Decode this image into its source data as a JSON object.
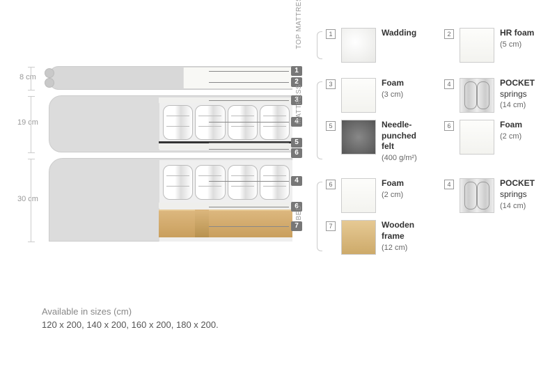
{
  "dimensions": {
    "top": "8 cm",
    "mid": "19 cm",
    "bot": "30 cm"
  },
  "pointers": [
    "1",
    "2",
    "3",
    "4",
    "5",
    "6",
    "7"
  ],
  "sections": {
    "top": {
      "label": "TOP MATTRESS",
      "items": [
        {
          "num": "1",
          "title": "Wadding",
          "sub": "",
          "swatch": "sw-wad"
        },
        {
          "num": "2",
          "title": "HR foam",
          "sub": "(5 cm)",
          "swatch": "sw-foam"
        }
      ]
    },
    "mid": {
      "label": "MATTRESS",
      "items": [
        {
          "num": "3",
          "title": "Foam",
          "sub": "(3 cm)",
          "swatch": "sw-foam"
        },
        {
          "num": "4",
          "title": "POCKET springs",
          "sub": "(14 cm)",
          "swatch": "sw-spring",
          "boldFirst": true
        },
        {
          "num": "5",
          "title": "Needle-punched felt",
          "sub": "(400 g/m²)",
          "swatch": "sw-felt"
        },
        {
          "num": "6",
          "title": "Foam",
          "sub": "(2 cm)",
          "swatch": "sw-foam"
        }
      ]
    },
    "bot": {
      "label": "BED",
      "items": [
        {
          "num": "6",
          "title": "Foam",
          "sub": "(2 cm)",
          "swatch": "sw-foam"
        },
        {
          "num": "4",
          "title": "POCKET springs",
          "sub": "(14 cm)",
          "swatch": "sw-spring",
          "boldFirst": true
        },
        {
          "num": "7",
          "title": "Wooden frame",
          "sub": "(12 cm)",
          "swatch": "sw-wood"
        }
      ]
    }
  },
  "sizes": {
    "label": "Available in sizes (cm)",
    "values": "120 x 200, 140 x 200, 160 x 200, 180 x 200."
  }
}
